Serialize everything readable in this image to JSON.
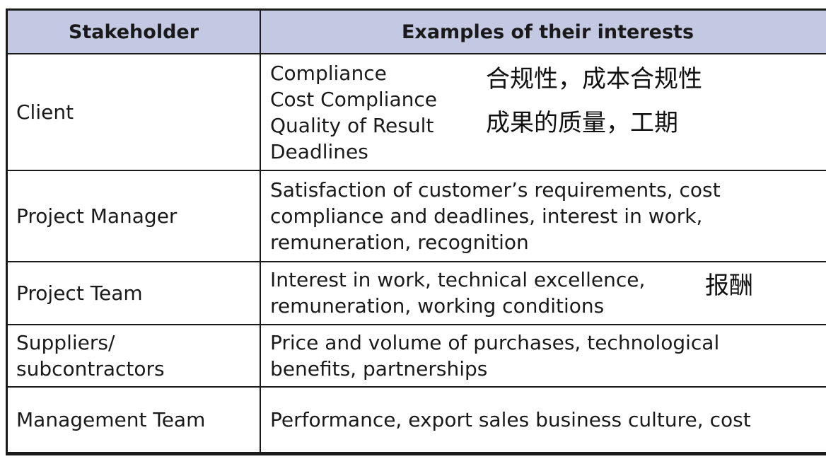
{
  "table": {
    "headers": [
      "Stakeholder",
      "Examples of their interests"
    ],
    "rows": [
      {
        "stakeholder": [
          "Client"
        ],
        "interests": [
          "Compliance",
          "Cost Compliance",
          "Quality of Result",
          "Deadlines"
        ],
        "notes": [
          "合规性，成本合规性",
          "成果的质量，工期"
        ]
      },
      {
        "stakeholder": [
          "Project Manager"
        ],
        "interests": [
          "Satisfaction of customer’s requirements, cost",
          "compliance and deadlines, interest in work,",
          "remuneration, recognition"
        ]
      },
      {
        "stakeholder": [
          "Project Team"
        ],
        "interests": [
          "Interest in work, technical excellence,",
          "remuneration, working conditions"
        ],
        "notes": [
          "报酬"
        ]
      },
      {
        "stakeholder": [
          "Suppliers/",
          "subcontractors"
        ],
        "interests": [
          "Price and volume of purchases, technological",
          "benefits, partnerships"
        ]
      },
      {
        "stakeholder": [
          "Management Team"
        ],
        "interests": [
          "Performance, export sales business culture, cost"
        ]
      }
    ]
  }
}
